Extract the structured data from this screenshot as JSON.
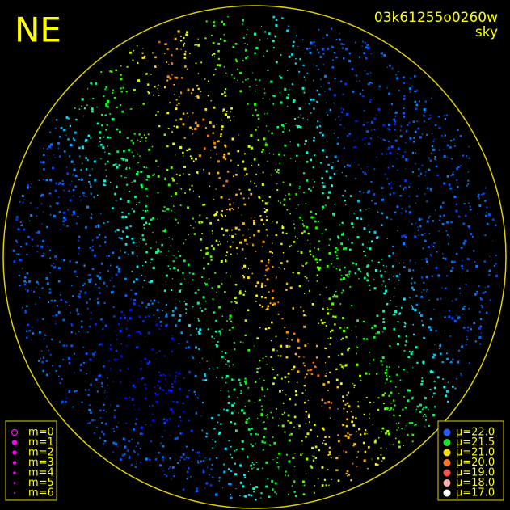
{
  "header": {
    "direction": "NE",
    "frame_id": "03k61255o0260w",
    "mode": "sky"
  },
  "magnitude_legend": {
    "items": [
      {
        "label": "m=0"
      },
      {
        "label": "m=1"
      },
      {
        "label": "m=2"
      },
      {
        "label": "m=3"
      },
      {
        "label": "m=4"
      },
      {
        "label": "m=5"
      },
      {
        "label": "m=6"
      }
    ],
    "color": "#ff00ff"
  },
  "brightness_legend": {
    "items": [
      {
        "label": "μ=22.0",
        "color": "#2a5bff"
      },
      {
        "label": "μ=21.5",
        "color": "#22dd33"
      },
      {
        "label": "μ=21.0",
        "color": "#ffdd00"
      },
      {
        "label": "μ=20.0",
        "color": "#ff7722"
      },
      {
        "label": "μ=19.0",
        "color": "#ff5050"
      },
      {
        "label": "μ=18.0",
        "color": "#ffaaaa"
      },
      {
        "label": "μ=17.0",
        "color": "#ffffff"
      }
    ]
  }
}
